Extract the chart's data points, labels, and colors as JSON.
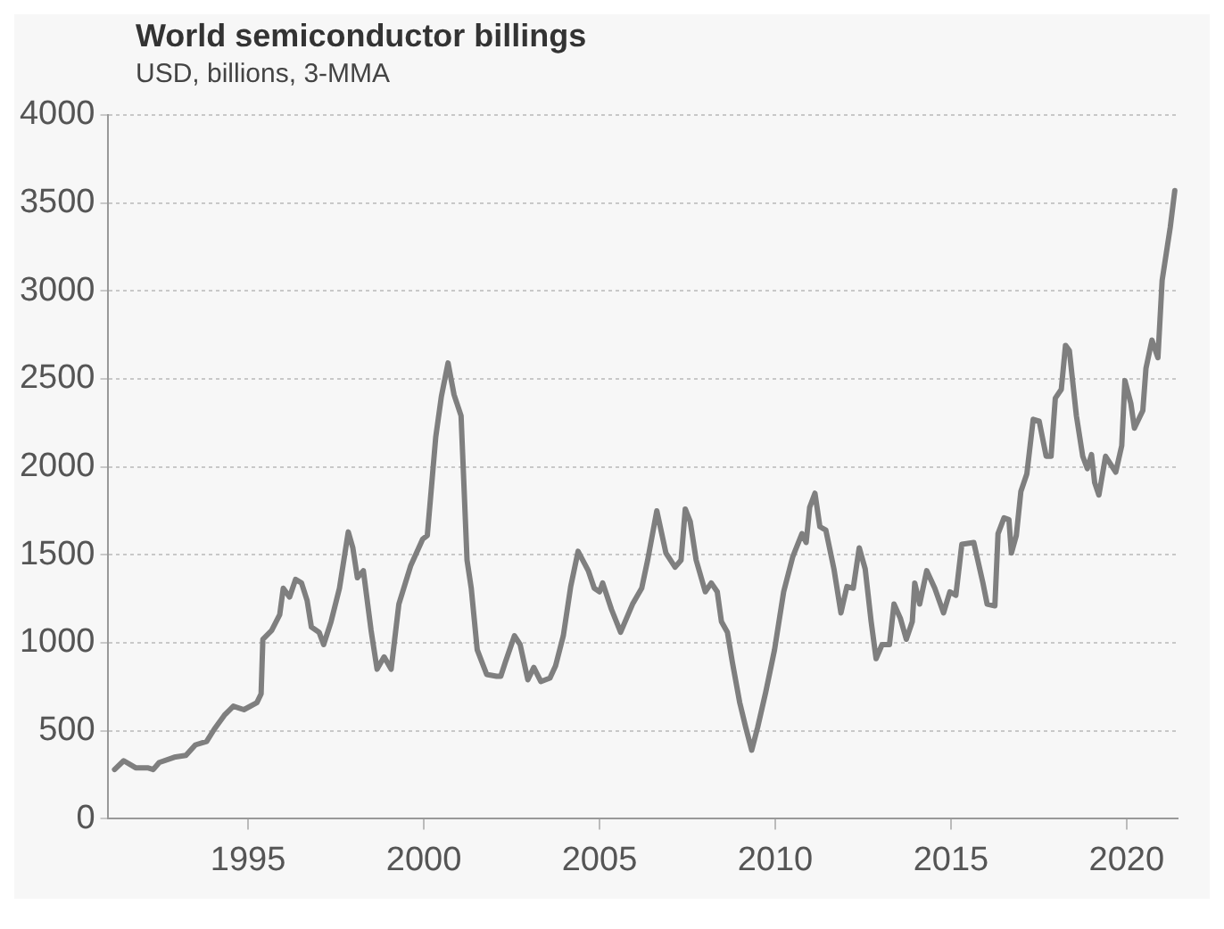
{
  "chart_data": {
    "type": "line",
    "title": "World semiconductor billings",
    "subtitle": "USD, billions, 3-MMA",
    "x": [
      1991.2,
      1991.46,
      1991.8,
      1992.14,
      1992.3,
      1992.47,
      1992.9,
      1993.23,
      1993.5,
      1993.82,
      1994.04,
      1994.33,
      1994.58,
      1994.88,
      1995.25,
      1995.37,
      1995.42,
      1995.67,
      1995.9,
      1996.0,
      1996.18,
      1996.35,
      1996.52,
      1996.68,
      1996.8,
      1997.02,
      1997.15,
      1997.36,
      1997.6,
      1997.85,
      1997.98,
      1998.11,
      1998.28,
      1998.5,
      1998.67,
      1998.87,
      1999.07,
      1999.29,
      1999.63,
      1999.97,
      2000.1,
      2000.22,
      2000.34,
      2000.5,
      2000.69,
      2000.86,
      2001.06,
      2001.23,
      2001.35,
      2001.52,
      2001.79,
      2002.07,
      2002.19,
      2002.32,
      2002.58,
      2002.74,
      2002.96,
      2003.13,
      2003.33,
      2003.59,
      2003.75,
      2003.97,
      2004.18,
      2004.39,
      2004.68,
      2004.85,
      2005.0,
      2005.09,
      2005.34,
      2005.6,
      2005.94,
      2006.2,
      2006.37,
      2006.63,
      2006.89,
      2007.15,
      2007.32,
      2007.44,
      2007.58,
      2007.75,
      2008.01,
      2008.18,
      2008.35,
      2008.47,
      2008.64,
      2008.78,
      2008.99,
      2009.16,
      2009.33,
      2009.5,
      2009.73,
      2009.98,
      2010.24,
      2010.5,
      2010.76,
      2010.88,
      2010.98,
      2011.13,
      2011.27,
      2011.44,
      2011.67,
      2011.87,
      2012.04,
      2012.22,
      2012.39,
      2012.56,
      2012.73,
      2012.87,
      2013.04,
      2013.25,
      2013.38,
      2013.56,
      2013.73,
      2013.9,
      2013.97,
      2014.11,
      2014.31,
      2014.54,
      2014.79,
      2014.97,
      2015.14,
      2015.31,
      2015.65,
      2015.91,
      2016.03,
      2016.25,
      2016.34,
      2016.51,
      2016.65,
      2016.72,
      2016.86,
      2016.99,
      2017.16,
      2017.34,
      2017.51,
      2017.71,
      2017.85,
      2017.97,
      2018.14,
      2018.26,
      2018.37,
      2018.57,
      2018.75,
      2018.88,
      2019.0,
      2019.09,
      2019.21,
      2019.4,
      2019.69,
      2019.86,
      2019.95,
      2020.12,
      2020.22,
      2020.46,
      2020.55,
      2020.72,
      2020.89,
      2021.01,
      2021.24,
      2021.37
    ],
    "series": [
      {
        "color": "#7f7f7f",
        "values": [
          280,
          330,
          290,
          290,
          280,
          320,
          350,
          360,
          420,
          440,
          510,
          590,
          640,
          620,
          660,
          710,
          1020,
          1070,
          1160,
          1310,
          1260,
          1360,
          1340,
          1240,
          1090,
          1060,
          990,
          1120,
          1310,
          1630,
          1540,
          1370,
          1410,
          1070,
          850,
          920,
          850,
          1220,
          1440,
          1590,
          1610,
          1890,
          2170,
          2400,
          2590,
          2410,
          2290,
          1470,
          1310,
          960,
          820,
          810,
          810,
          890,
          1040,
          990,
          790,
          860,
          780,
          800,
          870,
          1040,
          1320,
          1520,
          1410,
          1310,
          1290,
          1340,
          1190,
          1060,
          1220,
          1310,
          1470,
          1750,
          1510,
          1430,
          1470,
          1760,
          1690,
          1470,
          1290,
          1340,
          1290,
          1120,
          1060,
          890,
          660,
          520,
          390,
          520,
          720,
          960,
          1290,
          1490,
          1620,
          1570,
          1770,
          1850,
          1660,
          1640,
          1420,
          1170,
          1320,
          1310,
          1540,
          1420,
          1120,
          910,
          990,
          990,
          1220,
          1140,
          1020,
          1120,
          1340,
          1220,
          1410,
          1310,
          1170,
          1290,
          1270,
          1560,
          1570,
          1340,
          1220,
          1210,
          1620,
          1710,
          1700,
          1510,
          1610,
          1860,
          1960,
          2270,
          2260,
          2060,
          2060,
          2390,
          2440,
          2690,
          2660,
          2290,
          2060,
          1990,
          2070,
          1910,
          1840,
          2060,
          1970,
          2120,
          2490,
          2360,
          2220,
          2320,
          2560,
          2720,
          2620,
          3060,
          3360,
          3570
        ]
      }
    ],
    "xlim": [
      1991,
      2021.45
    ],
    "xticks": [
      1995,
      2000,
      2005,
      2010,
      2015,
      2020
    ],
    "ylim": [
      0,
      4000
    ],
    "yticks": [
      0,
      500,
      1000,
      1500,
      2000,
      2500,
      3000,
      3500,
      4000
    ],
    "grid": "y",
    "legend": false,
    "marker": "none",
    "line_style": "solid"
  }
}
